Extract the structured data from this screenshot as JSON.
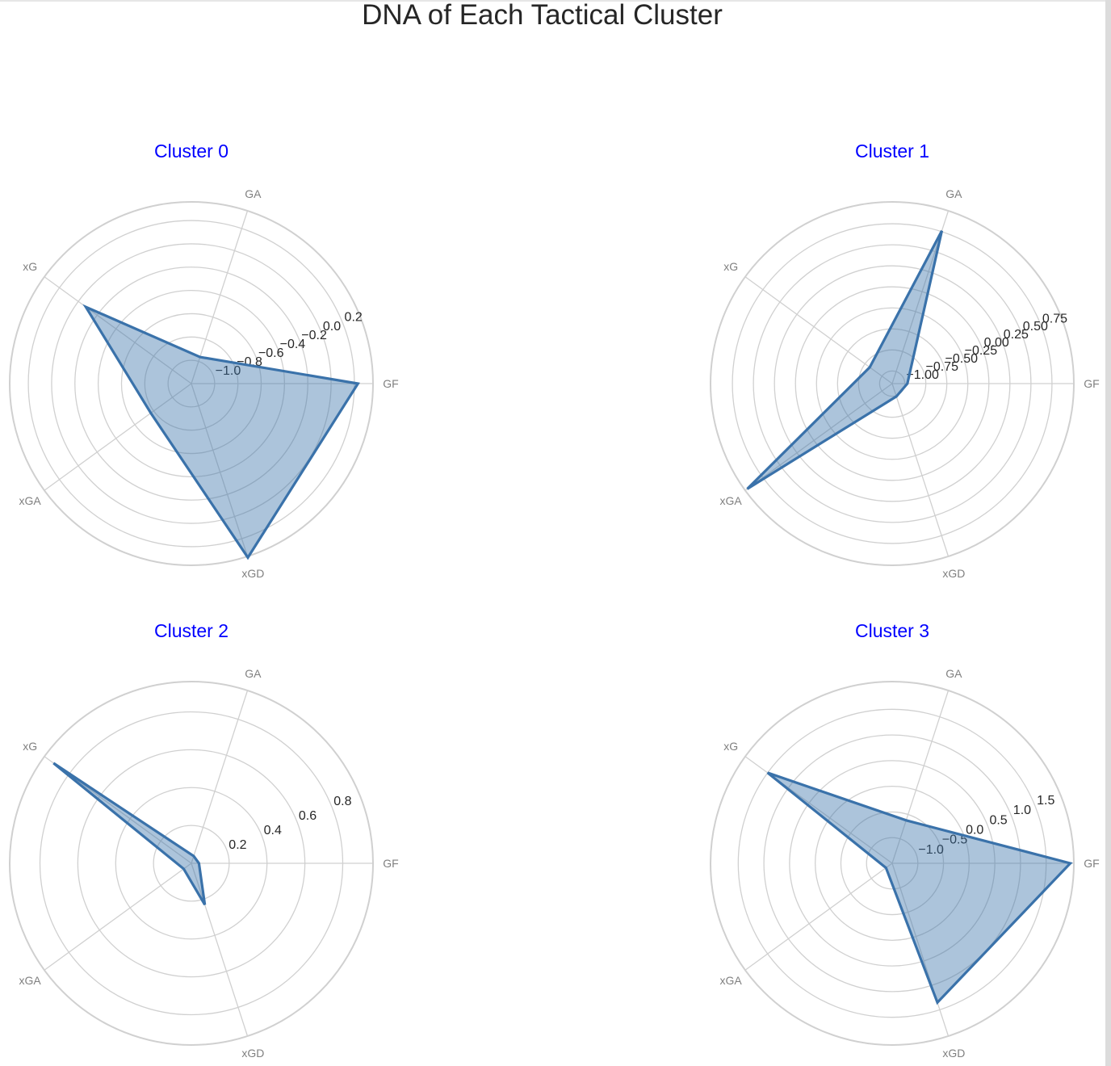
{
  "title": "DNA of Each Tactical Cluster",
  "colors": {
    "series_line": "#3a72aa",
    "series_fill": "#3a72aa",
    "grid": "#d0d0d0",
    "panel_title": "#0000ff",
    "text": "#262626",
    "axis_label": "#808080"
  },
  "chart_data": [
    {
      "type": "radar",
      "title": "Cluster 0",
      "axes": [
        "GF",
        "GA",
        "xG",
        "xGA",
        "xGD"
      ],
      "values": [
        0.23,
        -0.96,
        -0.08,
        -0.77,
        0.37
      ],
      "r_ticks": [
        -1.0,
        -0.8,
        -0.6,
        -0.4,
        -0.2,
        0.0,
        0.2
      ],
      "tick_labels": [
        "−1.0",
        "−0.8",
        "−0.6",
        "−0.4",
        "−0.2",
        "0.0",
        "0.2"
      ],
      "rlim": [
        -1.2,
        0.36
      ],
      "grid": true
    },
    {
      "type": "radar",
      "title": "Cluster 1",
      "axes": [
        "GF",
        "GA",
        "xG",
        "xGA",
        "xGD"
      ],
      "values": [
        -0.97,
        0.76,
        -0.82,
        0.98,
        -0.99
      ],
      "r_ticks": [
        -1.0,
        -0.75,
        -0.5,
        -0.25,
        0.0,
        0.25,
        0.5,
        0.75
      ],
      "tick_labels": [
        "−1.00",
        "−0.75",
        "−0.50",
        "−0.25",
        "0.00",
        "0.25",
        "0.50",
        "0.75"
      ],
      "rlim": [
        -1.15,
        1.01
      ],
      "grid": true
    },
    {
      "type": "radar",
      "title": "Cluster 2",
      "axes": [
        "GF",
        "GA",
        "xG",
        "xGA",
        "xGD"
      ],
      "values": [
        0.04,
        0.04,
        0.9,
        0.05,
        0.23
      ],
      "r_ticks": [
        0.2,
        0.4,
        0.6,
        0.8
      ],
      "tick_labels": [
        "0.2",
        "0.4",
        "0.6",
        "0.8"
      ],
      "rlim": [
        0.0,
        0.96
      ],
      "grid": true
    },
    {
      "type": "radar",
      "title": "Cluster 3",
      "axes": [
        "GF",
        "GA",
        "xG",
        "xGA",
        "xGD"
      ],
      "values": [
        1.97,
        -0.62,
        1.5,
        -1.35,
        1.35
      ],
      "r_ticks": [
        -1.0,
        -0.5,
        0.0,
        0.5,
        1.0,
        1.5
      ],
      "tick_labels": [
        "−1.0",
        "−0.5",
        "0.0",
        "0.5",
        "1.0",
        "1.5"
      ],
      "rlim": [
        -1.5,
        2.04
      ],
      "grid": true
    }
  ]
}
